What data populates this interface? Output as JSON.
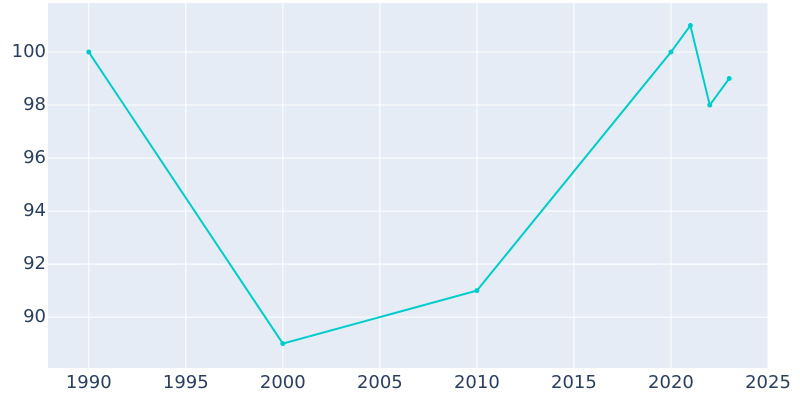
{
  "chart_data": {
    "type": "line",
    "x": [
      1990,
      2000,
      2010,
      2020,
      2021,
      2022,
      2023
    ],
    "series": [
      {
        "values": [
          100,
          89,
          91,
          100,
          101,
          98,
          99
        ],
        "color": "#00cccc"
      }
    ],
    "xlim": [
      1987.9,
      2025
    ],
    "ylim": [
      88.08,
      101.85
    ],
    "xticks": [
      1990,
      1995,
      2000,
      2005,
      2010,
      2015,
      2020,
      2025
    ],
    "yticks": [
      90,
      92,
      94,
      96,
      98,
      100
    ],
    "grid": true,
    "background": "#e5ecf6"
  }
}
